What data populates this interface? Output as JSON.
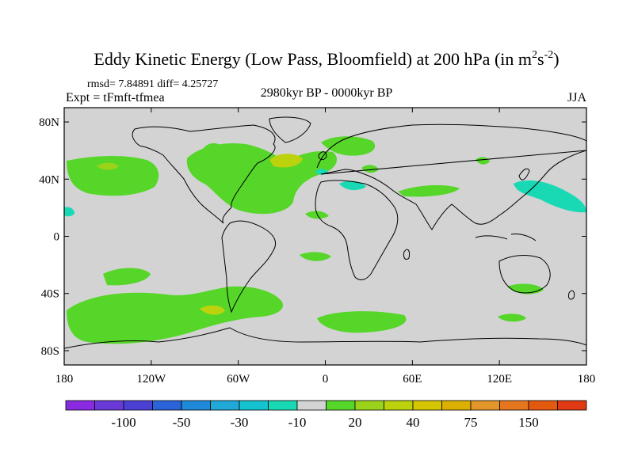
{
  "header": {
    "title": "Eddy Kinetic Energy (Low Pass, Bloomfield) at 200 hPa (in m",
    "title_sup1": "2",
    "title_mid": "s",
    "title_sup2": "-2",
    "title_close": ")",
    "stats": "rmsd= 7.84891 diff= 4.25727",
    "expt": "Expt = tFmft-tfmea",
    "period": "2980kyr BP - 0000kyr BP",
    "season": "JJA"
  },
  "map": {
    "projection": "cylindrical-equidistant",
    "lon_range": [
      -180,
      180
    ],
    "lat_range": [
      -90,
      90
    ],
    "ocean_land_color": "#d3d3d3",
    "coastline_color": "#000000",
    "lat_ticks": [
      {
        "value": 80,
        "label": "80N"
      },
      {
        "value": 40,
        "label": "40N"
      },
      {
        "value": 0,
        "label": "0"
      },
      {
        "value": -40,
        "label": "40S"
      },
      {
        "value": -80,
        "label": "80S"
      }
    ],
    "lon_ticks": [
      {
        "value": -180,
        "label": "180"
      },
      {
        "value": -120,
        "label": "120W"
      },
      {
        "value": -60,
        "label": "60W"
      },
      {
        "value": 0,
        "label": "0"
      },
      {
        "value": 60,
        "label": "60E"
      },
      {
        "value": 120,
        "label": "120E"
      },
      {
        "value": 180,
        "label": "180"
      }
    ]
  },
  "colorbar": {
    "colors": [
      "#8a2be2",
      "#6a3ad8",
      "#4b40d4",
      "#2a64d8",
      "#1f8ad9",
      "#20a8d8",
      "#14c2d0",
      "#19d9b5",
      "#d3d3d3",
      "#55d629",
      "#9bd21a",
      "#bcd20d",
      "#d6c600",
      "#dcb000",
      "#e3962a",
      "#e4761e",
      "#e35a0f",
      "#df3a14"
    ],
    "labels": [
      {
        "boundary": 2,
        "text": "-100"
      },
      {
        "boundary": 4,
        "text": "-50"
      },
      {
        "boundary": 6,
        "text": "-30"
      },
      {
        "boundary": 8,
        "text": "-10"
      },
      {
        "boundary": 10,
        "text": "20"
      },
      {
        "boundary": 12,
        "text": "40"
      },
      {
        "boundary": 14,
        "text": "75"
      },
      {
        "boundary": 16,
        "text": "150"
      }
    ]
  }
}
